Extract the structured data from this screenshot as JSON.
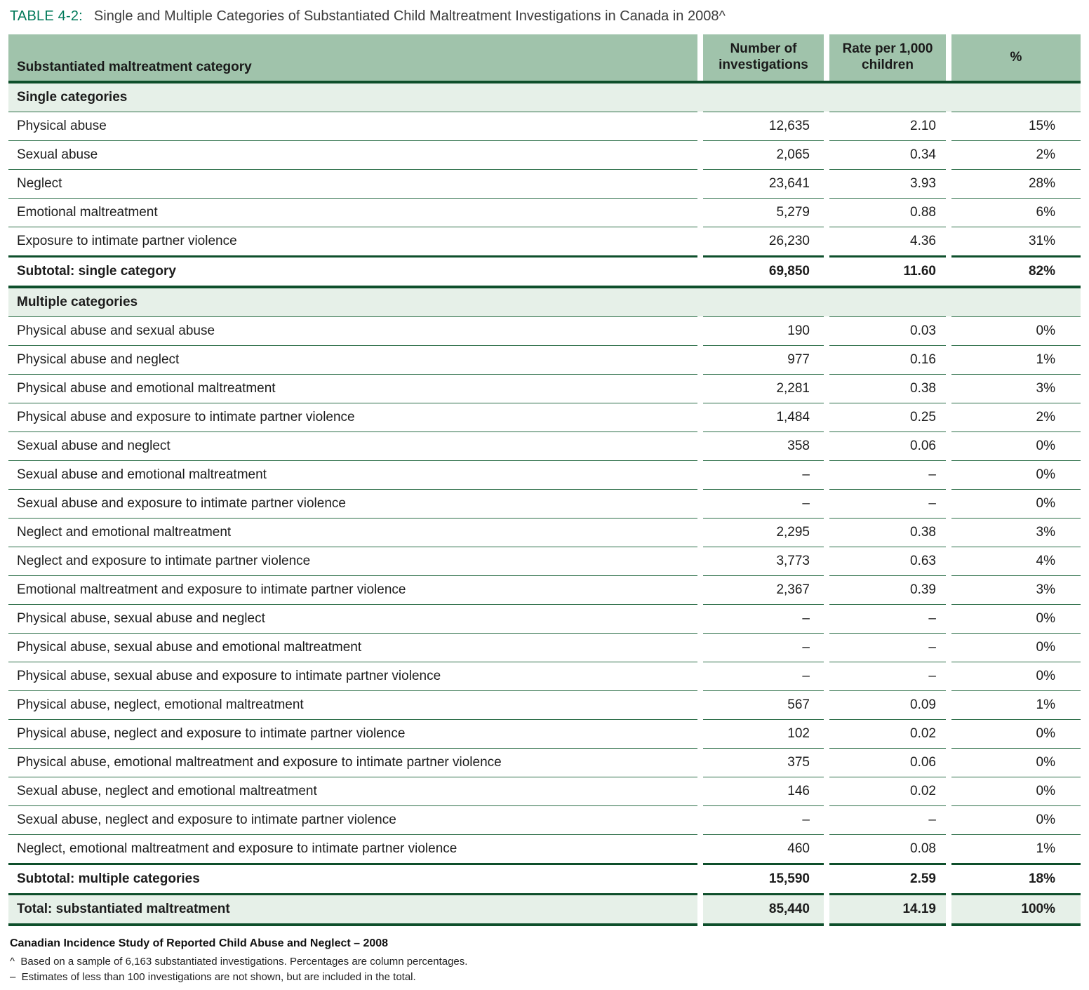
{
  "title": {
    "label": "TABLE 4-2:",
    "text": "Single and Multiple Categories of Substantiated Child Maltreatment Investigations in Canada in 2008^"
  },
  "table": {
    "columns": [
      "Substantiated maltreatment category",
      "Number of investigations",
      "Rate per 1,000 children",
      "%"
    ],
    "rows": [
      {
        "type": "section",
        "label": "Single categories"
      },
      {
        "type": "data",
        "label": "Physical abuse",
        "investigations": "12,635",
        "rate": "2.10",
        "pct": "15%"
      },
      {
        "type": "data",
        "label": "Sexual abuse",
        "investigations": "2,065",
        "rate": "0.34",
        "pct": "2%"
      },
      {
        "type": "data",
        "label": "Neglect",
        "investigations": "23,641",
        "rate": "3.93",
        "pct": "28%"
      },
      {
        "type": "data",
        "label": "Emotional maltreatment",
        "investigations": "5,279",
        "rate": "0.88",
        "pct": "6%"
      },
      {
        "type": "data",
        "label": "Exposure to intimate partner violence",
        "investigations": "26,230",
        "rate": "4.36",
        "pct": "31%"
      },
      {
        "type": "subtotal",
        "label": "Subtotal: single category",
        "investigations": "69,850",
        "rate": "11.60",
        "pct": "82%"
      },
      {
        "type": "section",
        "label": "Multiple categories"
      },
      {
        "type": "data",
        "label": "Physical abuse and sexual abuse",
        "investigations": "190",
        "rate": "0.03",
        "pct": "0%"
      },
      {
        "type": "data",
        "label": "Physical abuse and neglect",
        "investigations": "977",
        "rate": "0.16",
        "pct": "1%"
      },
      {
        "type": "data",
        "label": "Physical abuse and emotional maltreatment",
        "investigations": "2,281",
        "rate": "0.38",
        "pct": "3%"
      },
      {
        "type": "data",
        "label": "Physical abuse and exposure to intimate partner violence",
        "investigations": "1,484",
        "rate": "0.25",
        "pct": "2%"
      },
      {
        "type": "data",
        "label": "Sexual abuse and neglect",
        "investigations": "358",
        "rate": "0.06",
        "pct": "0%"
      },
      {
        "type": "data",
        "label": "Sexual abuse and emotional maltreatment",
        "investigations": "–",
        "rate": "–",
        "pct": "0%"
      },
      {
        "type": "data",
        "label": "Sexual abuse and exposure to intimate partner violence",
        "investigations": "–",
        "rate": "–",
        "pct": "0%"
      },
      {
        "type": "data",
        "label": "Neglect and emotional maltreatment",
        "investigations": "2,295",
        "rate": "0.38",
        "pct": "3%"
      },
      {
        "type": "data",
        "label": "Neglect and exposure to intimate partner violence",
        "investigations": "3,773",
        "rate": "0.63",
        "pct": "4%"
      },
      {
        "type": "data",
        "label": "Emotional maltreatment and exposure to intimate partner violence",
        "investigations": "2,367",
        "rate": "0.39",
        "pct": "3%"
      },
      {
        "type": "data",
        "label": "Physical abuse, sexual abuse and neglect",
        "investigations": "–",
        "rate": "–",
        "pct": "0%"
      },
      {
        "type": "data",
        "label": "Physical abuse, sexual abuse and emotional maltreatment",
        "investigations": "–",
        "rate": "–",
        "pct": "0%"
      },
      {
        "type": "data",
        "label": "Physical abuse, sexual abuse and exposure to intimate partner violence",
        "investigations": "–",
        "rate": "–",
        "pct": "0%"
      },
      {
        "type": "data",
        "label": "Physical abuse, neglect, emotional maltreatment",
        "investigations": "567",
        "rate": "0.09",
        "pct": "1%"
      },
      {
        "type": "data",
        "label": "Physical abuse, neglect and exposure to intimate partner violence",
        "investigations": "102",
        "rate": "0.02",
        "pct": "0%"
      },
      {
        "type": "data",
        "label": "Physical abuse, emotional maltreatment and exposure to intimate partner violence",
        "investigations": "375",
        "rate": "0.06",
        "pct": "0%"
      },
      {
        "type": "data",
        "label": "Sexual abuse, neglect and emotional maltreatment",
        "investigations": "146",
        "rate": "0.02",
        "pct": "0%"
      },
      {
        "type": "data",
        "label": "Sexual abuse, neglect and exposure to intimate partner violence",
        "investigations": "–",
        "rate": "–",
        "pct": "0%"
      },
      {
        "type": "data",
        "label": "Neglect, emotional maltreatment and exposure to intimate partner violence",
        "investigations": "460",
        "rate": "0.08",
        "pct": "1%"
      },
      {
        "type": "subtotal",
        "label": "Subtotal: multiple categories",
        "investigations": "15,590",
        "rate": "2.59",
        "pct": "18%"
      },
      {
        "type": "total",
        "label": "Total: substantiated maltreatment",
        "investigations": "85,440",
        "rate": "14.19",
        "pct": "100%"
      }
    ]
  },
  "footer": {
    "source": "Canadian Incidence Study of Reported Child Abuse and Neglect – 2008",
    "note_caret": "^  Based on a sample of 6,163 substantiated investigations. Percentages are column percentages.",
    "note_dash": "–  Estimates of less than 100 investigations are not shown, but are included in the total."
  },
  "colors": {
    "header_green": "#a0c3ab",
    "band_green": "#e6f0e8",
    "rule_dark_green": "#0e4f2b",
    "rule_thin_green": "#2c6e48",
    "title_green": "#00795a"
  }
}
